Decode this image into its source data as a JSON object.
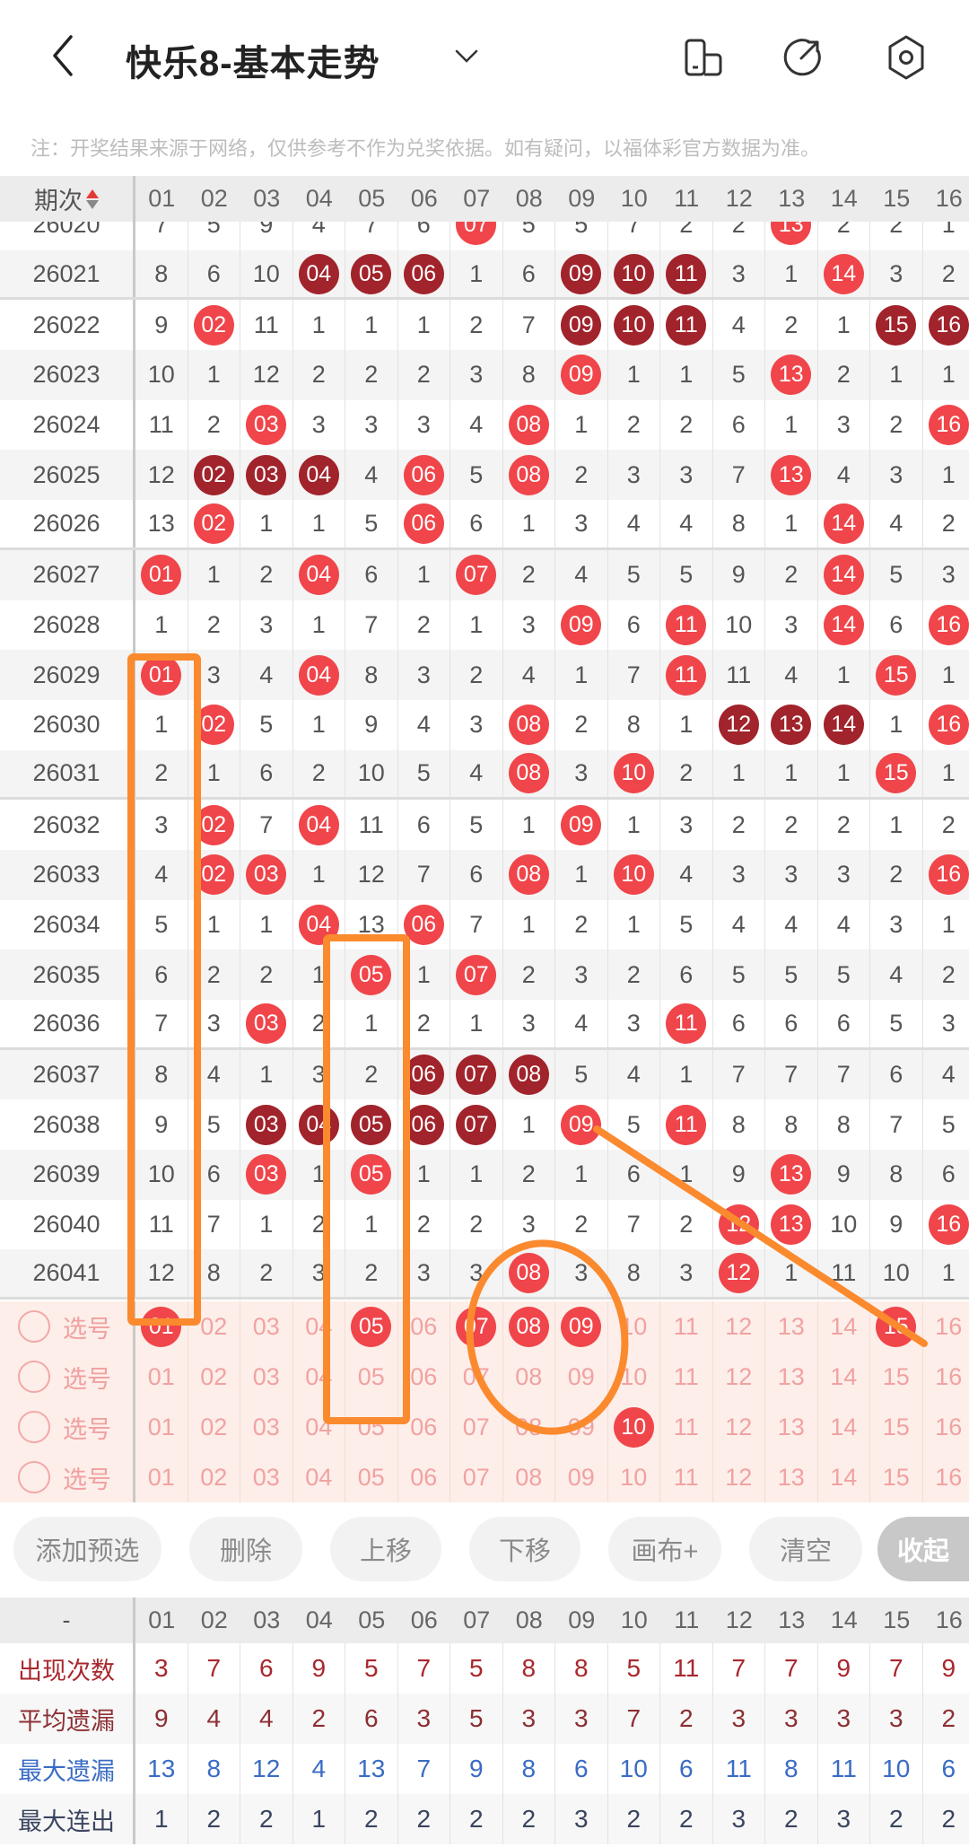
{
  "header": {
    "title": "快乐8-基本走势",
    "note": "注：开奖结果来源于网络，仅供参考不作为兑奖依据。如有疑问，以福体彩官方数据为准。",
    "icons": [
      "back-icon",
      "chevron-down-icon",
      "device-icon",
      "share-icon",
      "settings-icon"
    ]
  },
  "colors": {
    "ball_light": "#f0454a",
    "ball_dark": "#a1232b",
    "annotation": "#fb8a2e",
    "picker_bg": "#fdeee9"
  },
  "trend": {
    "header_label": "期次",
    "columns": [
      "01",
      "02",
      "03",
      "04",
      "05",
      "06",
      "07",
      "08",
      "09",
      "10",
      "11",
      "12",
      "13",
      "14",
      "15",
      "16"
    ],
    "rows": [
      {
        "period": "26020",
        "cells": [
          "7",
          "5",
          "9",
          "4",
          "7",
          "6",
          {
            "ball": "07",
            "style": "light"
          },
          "5",
          "5",
          "7",
          "2",
          "2",
          {
            "ball": "13",
            "style": "light"
          },
          "2",
          "2",
          "1"
        ]
      },
      {
        "period": "26021",
        "cells": [
          "8",
          "6",
          "10",
          {
            "ball": "04",
            "style": "dark"
          },
          {
            "ball": "05",
            "style": "dark"
          },
          {
            "ball": "06",
            "style": "dark"
          },
          "1",
          "6",
          {
            "ball": "09",
            "style": "dark"
          },
          {
            "ball": "10",
            "style": "dark"
          },
          {
            "ball": "11",
            "style": "dark"
          },
          "3",
          "1",
          {
            "ball": "14",
            "style": "light"
          },
          "3",
          "2"
        ]
      },
      {
        "period": "26022",
        "cells": [
          "9",
          {
            "ball": "02",
            "style": "light"
          },
          "11",
          "1",
          "1",
          "1",
          "2",
          "7",
          {
            "ball": "09",
            "style": "dark"
          },
          {
            "ball": "10",
            "style": "dark"
          },
          {
            "ball": "11",
            "style": "dark"
          },
          "4",
          "2",
          "1",
          {
            "ball": "15",
            "style": "dark"
          },
          {
            "ball": "16",
            "style": "dark"
          }
        ]
      },
      {
        "period": "26023",
        "cells": [
          "10",
          "1",
          "12",
          "2",
          "2",
          "2",
          "3",
          "8",
          {
            "ball": "09",
            "style": "light"
          },
          "1",
          "1",
          "5",
          {
            "ball": "13",
            "style": "light"
          },
          "2",
          "1",
          "1"
        ]
      },
      {
        "period": "26024",
        "cells": [
          "11",
          "2",
          {
            "ball": "03",
            "style": "light"
          },
          "3",
          "3",
          "3",
          "4",
          {
            "ball": "08",
            "style": "light"
          },
          "1",
          "2",
          "2",
          "6",
          "1",
          "3",
          "2",
          {
            "ball": "16",
            "style": "light"
          }
        ]
      },
      {
        "period": "26025",
        "cells": [
          "12",
          {
            "ball": "02",
            "style": "dark"
          },
          {
            "ball": "03",
            "style": "dark"
          },
          {
            "ball": "04",
            "style": "dark"
          },
          "4",
          {
            "ball": "06",
            "style": "light"
          },
          "5",
          {
            "ball": "08",
            "style": "light"
          },
          "2",
          "3",
          "3",
          "7",
          {
            "ball": "13",
            "style": "light"
          },
          "4",
          "3",
          "1"
        ]
      },
      {
        "period": "26026",
        "cells": [
          "13",
          {
            "ball": "02",
            "style": "light"
          },
          "1",
          "1",
          "5",
          {
            "ball": "06",
            "style": "light"
          },
          "6",
          "1",
          "3",
          "4",
          "4",
          "8",
          "1",
          {
            "ball": "14",
            "style": "light"
          },
          "4",
          "2"
        ]
      },
      {
        "period": "26027",
        "cells": [
          {
            "ball": "01",
            "style": "light"
          },
          "1",
          "2",
          {
            "ball": "04",
            "style": "light"
          },
          "6",
          "1",
          {
            "ball": "07",
            "style": "light"
          },
          "2",
          "4",
          "5",
          "5",
          "9",
          "2",
          {
            "ball": "14",
            "style": "light"
          },
          "5",
          "3"
        ]
      },
      {
        "period": "26028",
        "cells": [
          "1",
          "2",
          "3",
          "1",
          "7",
          "2",
          "1",
          "3",
          {
            "ball": "09",
            "style": "light"
          },
          "6",
          {
            "ball": "11",
            "style": "light"
          },
          "10",
          "3",
          {
            "ball": "14",
            "style": "light"
          },
          "6",
          {
            "ball": "16",
            "style": "light"
          }
        ]
      },
      {
        "period": "26029",
        "cells": [
          {
            "ball": "01",
            "style": "light"
          },
          "3",
          "4",
          {
            "ball": "04",
            "style": "light"
          },
          "8",
          "3",
          "2",
          "4",
          "1",
          "7",
          {
            "ball": "11",
            "style": "light"
          },
          "11",
          "4",
          "1",
          {
            "ball": "15",
            "style": "light"
          },
          "1"
        ]
      },
      {
        "period": "26030",
        "cells": [
          "1",
          {
            "ball": "02",
            "style": "light"
          },
          "5",
          "1",
          "9",
          "4",
          "3",
          {
            "ball": "08",
            "style": "light"
          },
          "2",
          "8",
          "1",
          {
            "ball": "12",
            "style": "dark"
          },
          {
            "ball": "13",
            "style": "dark"
          },
          {
            "ball": "14",
            "style": "dark"
          },
          "1",
          {
            "ball": "16",
            "style": "light"
          }
        ]
      },
      {
        "period": "26031",
        "cells": [
          "2",
          "1",
          "6",
          "2",
          "10",
          "5",
          "4",
          {
            "ball": "08",
            "style": "light"
          },
          "3",
          {
            "ball": "10",
            "style": "light"
          },
          "2",
          "1",
          "1",
          "1",
          {
            "ball": "15",
            "style": "light"
          },
          "1"
        ]
      },
      {
        "period": "26032",
        "cells": [
          "3",
          {
            "ball": "02",
            "style": "light"
          },
          "7",
          {
            "ball": "04",
            "style": "light"
          },
          "11",
          "6",
          "5",
          "1",
          {
            "ball": "09",
            "style": "light"
          },
          "1",
          "3",
          "2",
          "2",
          "2",
          "1",
          "2"
        ]
      },
      {
        "period": "26033",
        "cells": [
          "4",
          {
            "ball": "02",
            "style": "light"
          },
          {
            "ball": "03",
            "style": "light"
          },
          "1",
          "12",
          "7",
          "6",
          {
            "ball": "08",
            "style": "light"
          },
          "1",
          {
            "ball": "10",
            "style": "light"
          },
          "4",
          "3",
          "3",
          "3",
          "2",
          {
            "ball": "16",
            "style": "light"
          }
        ]
      },
      {
        "period": "26034",
        "cells": [
          "5",
          "1",
          "1",
          {
            "ball": "04",
            "style": "light"
          },
          "13",
          {
            "ball": "06",
            "style": "light"
          },
          "7",
          "1",
          "2",
          "1",
          "5",
          "4",
          "4",
          "4",
          "3",
          "1"
        ]
      },
      {
        "period": "26035",
        "cells": [
          "6",
          "2",
          "2",
          "1",
          {
            "ball": "05",
            "style": "light"
          },
          "1",
          {
            "ball": "07",
            "style": "light"
          },
          "2",
          "3",
          "2",
          "6",
          "5",
          "5",
          "5",
          "4",
          "2"
        ]
      },
      {
        "period": "26036",
        "cells": [
          "7",
          "3",
          {
            "ball": "03",
            "style": "light"
          },
          "2",
          "1",
          "2",
          "1",
          "3",
          "4",
          "3",
          {
            "ball": "11",
            "style": "light"
          },
          "6",
          "6",
          "6",
          "5",
          "3"
        ]
      },
      {
        "period": "26037",
        "cells": [
          "8",
          "4",
          "1",
          "3",
          "2",
          {
            "ball": "06",
            "style": "dark"
          },
          {
            "ball": "07",
            "style": "dark"
          },
          {
            "ball": "08",
            "style": "dark"
          },
          "5",
          "4",
          "1",
          "7",
          "7",
          "7",
          "6",
          "4"
        ]
      },
      {
        "period": "26038",
        "cells": [
          "9",
          "5",
          {
            "ball": "03",
            "style": "dark"
          },
          {
            "ball": "04",
            "style": "dark"
          },
          {
            "ball": "05",
            "style": "dark"
          },
          {
            "ball": "06",
            "style": "dark"
          },
          {
            "ball": "07",
            "style": "dark"
          },
          "1",
          {
            "ball": "09",
            "style": "light"
          },
          "5",
          {
            "ball": "11",
            "style": "light"
          },
          "8",
          "8",
          "8",
          "7",
          "5"
        ]
      },
      {
        "period": "26039",
        "cells": [
          "10",
          "6",
          {
            "ball": "03",
            "style": "light"
          },
          "1",
          {
            "ball": "05",
            "style": "light"
          },
          "1",
          "1",
          "2",
          "1",
          "6",
          "1",
          "9",
          {
            "ball": "13",
            "style": "light"
          },
          "9",
          "8",
          "6"
        ]
      },
      {
        "period": "26040",
        "cells": [
          "11",
          "7",
          "1",
          "2",
          "1",
          "2",
          "2",
          "3",
          "2",
          "7",
          "2",
          {
            "ball": "12",
            "style": "light"
          },
          {
            "ball": "13",
            "style": "light"
          },
          "10",
          "9",
          {
            "ball": "16",
            "style": "light"
          }
        ]
      },
      {
        "period": "26041",
        "cells": [
          "12",
          "8",
          "2",
          "3",
          "2",
          "3",
          "3",
          {
            "ball": "08",
            "style": "light"
          },
          "3",
          "8",
          "3",
          {
            "ball": "12",
            "style": "light"
          },
          "1",
          "11",
          "10",
          "1"
        ]
      }
    ]
  },
  "picker": {
    "label": "选号",
    "rows": [
      {
        "selected": [
          "01",
          "05",
          "07",
          "08",
          "09",
          "15"
        ]
      },
      {
        "selected": []
      },
      {
        "selected": [
          "10"
        ]
      },
      {
        "selected": []
      }
    ]
  },
  "actions": {
    "add_preselect": "添加预选",
    "delete": "删除",
    "move_up": "上移",
    "move_down": "下移",
    "canvas": "画布+",
    "clear": "清空",
    "collapse": "收起"
  },
  "stats": {
    "header_label": "-",
    "rows": [
      {
        "label": "出现次数",
        "color": "#a8282d",
        "values": [
          "3",
          "7",
          "6",
          "9",
          "5",
          "7",
          "5",
          "8",
          "8",
          "5",
          "11",
          "7",
          "7",
          "9",
          "7",
          "9"
        ]
      },
      {
        "label": "平均遗漏",
        "color": "#8c2f33",
        "values": [
          "9",
          "4",
          "4",
          "2",
          "6",
          "3",
          "5",
          "3",
          "3",
          "7",
          "2",
          "3",
          "3",
          "3",
          "3",
          "2"
        ]
      },
      {
        "label": "最大遗漏",
        "color": "#3a6cc4",
        "values": [
          "13",
          "8",
          "12",
          "4",
          "13",
          "7",
          "9",
          "8",
          "6",
          "10",
          "6",
          "11",
          "8",
          "11",
          "10",
          "6"
        ]
      },
      {
        "label": "最大连出",
        "color": "#3b4560",
        "values": [
          "1",
          "2",
          "2",
          "1",
          "2",
          "2",
          "2",
          "2",
          "3",
          "2",
          "2",
          "3",
          "2",
          "3",
          "2",
          "2"
        ]
      }
    ]
  }
}
